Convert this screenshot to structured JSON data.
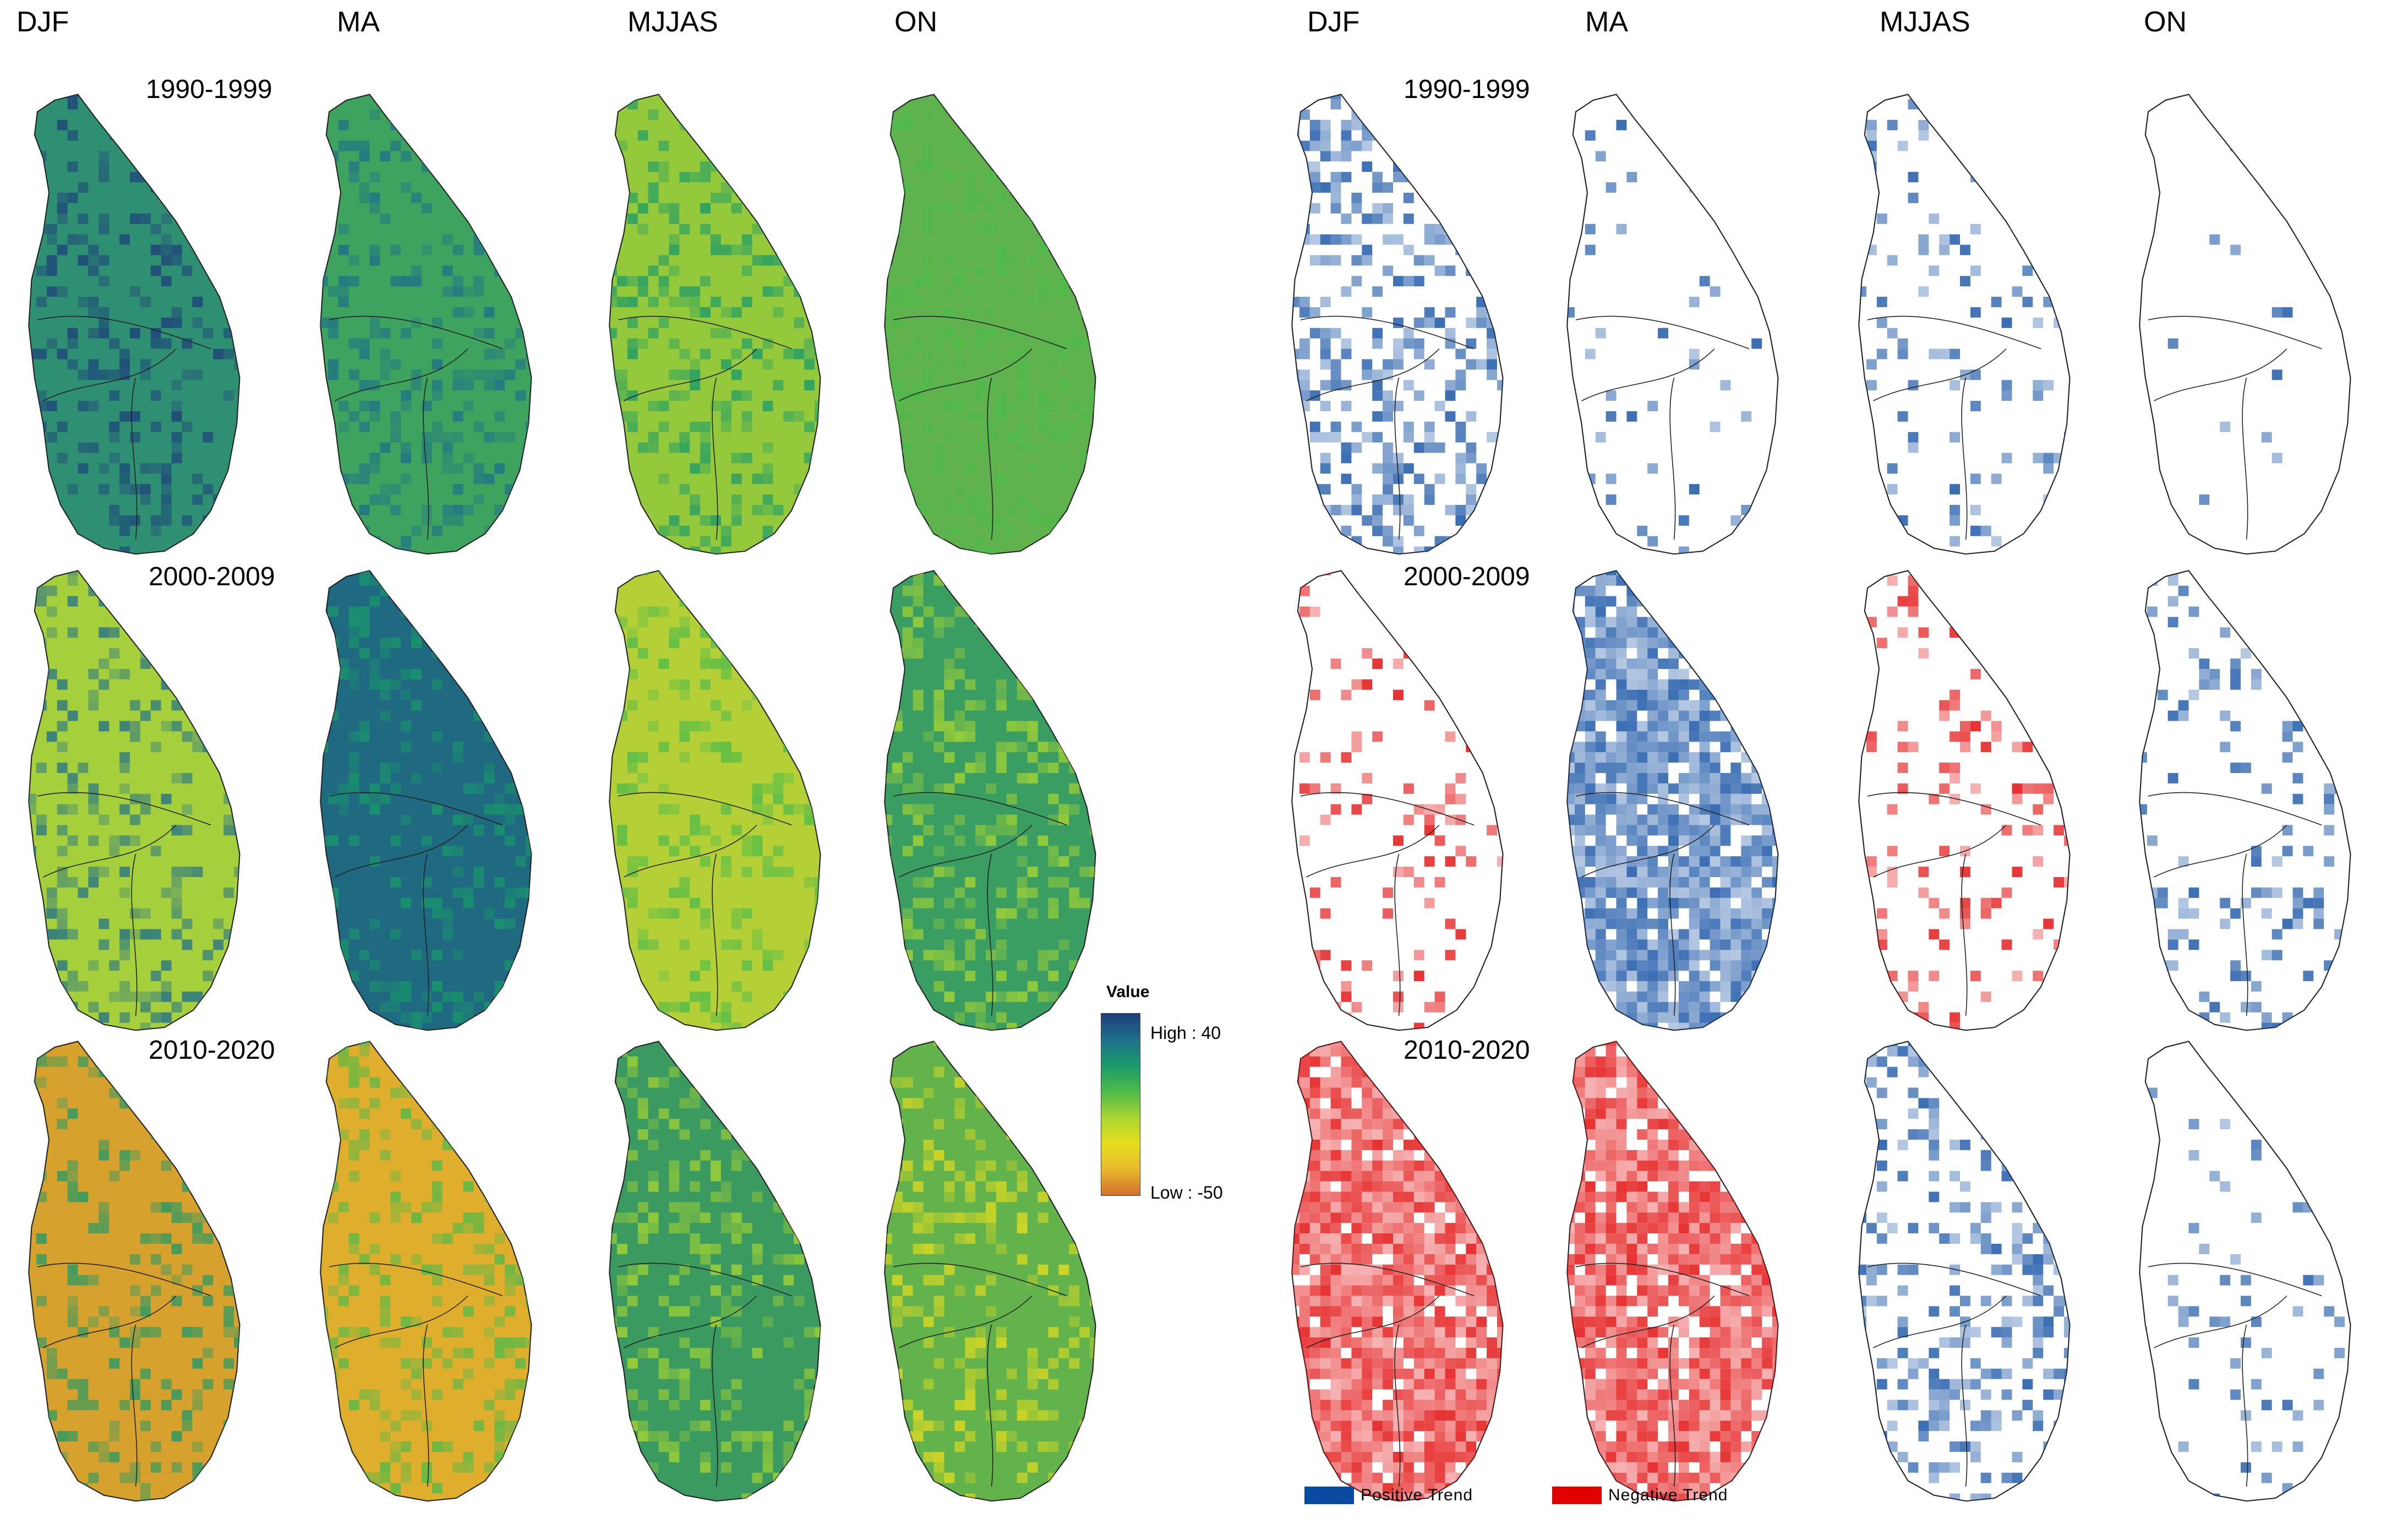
{
  "seasons": [
    "DJF",
    "MA",
    "MJJAS",
    "ON"
  ],
  "periods": [
    "1990-1999",
    "2000-2009",
    "2010-2020"
  ],
  "legend": {
    "title": "Value",
    "high_label": "High : 40",
    "low_label": "Low : -50",
    "high_value": 40,
    "low_value": -50,
    "colors": [
      "#1c3f7a",
      "#1f6f8b",
      "#1a9a6a",
      "#4dbb4a",
      "#a9d631",
      "#e5dd1e",
      "#e8b92a",
      "#d2702f"
    ]
  },
  "trend_legend": {
    "positive_label": "Positive Trend",
    "negative_label": "Negative Trend",
    "positive_color": "#0a4aa0",
    "negative_color": "#e10000"
  },
  "value_maps": [
    [
      "#2f8f73",
      "#3ea35e",
      "#93c93a",
      "#5fb24e"
    ],
    [
      "#a6cf3c",
      "#1f6a80",
      "#b5cf37",
      "#3a9e63"
    ],
    [
      "#d7a12d",
      "#dfae2c",
      "#3a9a60",
      "#63b34c"
    ]
  ],
  "trend_maps": [
    [
      {
        "sign": "positive",
        "coverage": 0.35
      },
      {
        "sign": "positive",
        "coverage": 0.05
      },
      {
        "sign": "positive",
        "coverage": 0.12
      },
      {
        "sign": "positive",
        "coverage": 0.02
      }
    ],
    [
      {
        "sign": "negative",
        "coverage": 0.12
      },
      {
        "sign": "positive",
        "coverage": 0.85
      },
      {
        "sign": "negative",
        "coverage": 0.15
      },
      {
        "sign": "positive",
        "coverage": 0.18
      }
    ],
    [
      {
        "sign": "negative",
        "coverage": 0.92
      },
      {
        "sign": "negative",
        "coverage": 0.88
      },
      {
        "sign": "positive",
        "coverage": 0.3
      },
      {
        "sign": "positive",
        "coverage": 0.08
      }
    ]
  ]
}
